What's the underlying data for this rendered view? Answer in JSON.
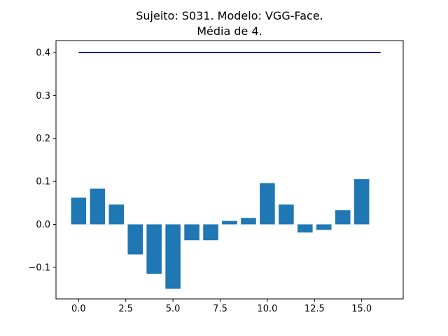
{
  "chart_data": {
    "type": "bar",
    "title": [
      "Sujeito: S031. Modelo: VGG-Face.",
      "Média de 4."
    ],
    "xlabel": "",
    "ylabel": "",
    "xlim": [
      -1.2,
      17.2
    ],
    "ylim": [
      -0.1735,
      0.4276
    ],
    "grid": false,
    "bar_color": "#1f77b4",
    "line_color": "#0000aa",
    "bar_width": 0.8,
    "x": [
      0,
      1,
      2,
      3,
      4,
      5,
      6,
      7,
      8,
      9,
      10,
      11,
      12,
      13,
      14,
      15
    ],
    "values": [
      0.062,
      0.083,
      0.046,
      -0.07,
      -0.115,
      -0.15,
      -0.037,
      -0.037,
      0.008,
      0.015,
      0.096,
      0.046,
      -0.019,
      -0.013,
      0.033,
      0.105
    ],
    "line": {
      "x": [
        0,
        16
      ],
      "y": [
        0.4,
        0.4
      ]
    },
    "xticks": [
      {
        "value": 0.0,
        "label": "0.0"
      },
      {
        "value": 2.5,
        "label": "2.5"
      },
      {
        "value": 5.0,
        "label": "5.0"
      },
      {
        "value": 7.5,
        "label": "7.5"
      },
      {
        "value": 10.0,
        "label": "10.0"
      },
      {
        "value": 12.5,
        "label": "12.5"
      },
      {
        "value": 15.0,
        "label": "15.0"
      }
    ],
    "yticks": [
      {
        "value": -0.1,
        "label": "−0.1"
      },
      {
        "value": 0.0,
        "label": "0.0"
      },
      {
        "value": 0.1,
        "label": "0.1"
      },
      {
        "value": 0.2,
        "label": "0.2"
      },
      {
        "value": 0.3,
        "label": "0.3"
      },
      {
        "value": 0.4,
        "label": "0.4"
      }
    ]
  }
}
